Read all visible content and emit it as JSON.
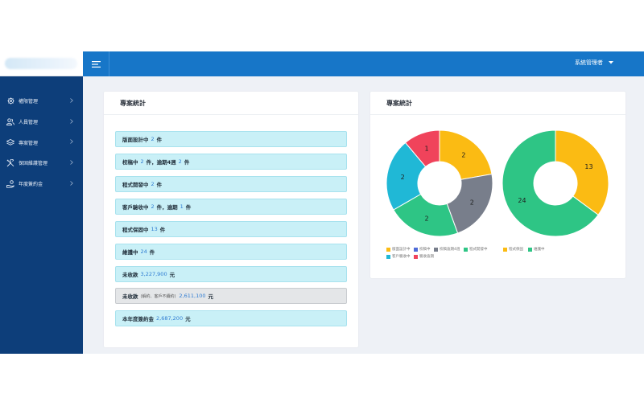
{
  "topbar": {
    "admin_label": "系統管理者"
  },
  "sidebar": {
    "items": [
      {
        "label": "權限管理",
        "icon": "gear-icon"
      },
      {
        "label": "人員管理",
        "icon": "users-icon"
      },
      {
        "label": "專案管理",
        "icon": "layers-icon"
      },
      {
        "label": "保固維護管理",
        "icon": "tools-icon"
      },
      {
        "label": "年度簽約金",
        "icon": "hand-coin-icon"
      }
    ]
  },
  "stats_card": {
    "title": "專案統計",
    "rows": [
      {
        "parts": [
          "版面設計中",
          "2",
          "件"
        ]
      },
      {
        "parts": [
          "校稿中",
          "2",
          "件，逾期4週",
          "2",
          "件"
        ]
      },
      {
        "parts": [
          "程式開發中",
          "2",
          "件"
        ]
      },
      {
        "parts": [
          "客戶驗收中",
          "2",
          "件，逾期",
          "1",
          "件"
        ]
      },
      {
        "parts": [
          "程式保固中",
          "13",
          "件"
        ]
      },
      {
        "parts": [
          "維護中",
          "24",
          "件"
        ]
      },
      {
        "parts": [
          "未收款",
          "3,227,900",
          "元"
        ]
      },
      {
        "parts": [
          "未收款",
          "(解約、客戶不續約)",
          "2,611,100",
          "元"
        ]
      },
      {
        "parts": [
          "本年度簽約金",
          "2,687,200",
          "元"
        ]
      }
    ]
  },
  "chart_card": {
    "title": "專案統計"
  },
  "chart_data": [
    {
      "type": "pie",
      "categories": [
        "版面設計中",
        "校稿中",
        "校稿逾期4週",
        "程式開發中",
        "客戶驗收中",
        "驗收逾期"
      ],
      "values": [
        2,
        0,
        2,
        2,
        2,
        1
      ],
      "colors": [
        "#fbbb13",
        "#4e6bd8",
        "#787e8b",
        "#2ec585",
        "#20b8d6",
        "#f0435b"
      ]
    },
    {
      "type": "pie",
      "categories": [
        "程式保固",
        "維護中"
      ],
      "values": [
        13,
        24
      ],
      "colors": [
        "#fbbb13",
        "#2ec585"
      ]
    }
  ]
}
